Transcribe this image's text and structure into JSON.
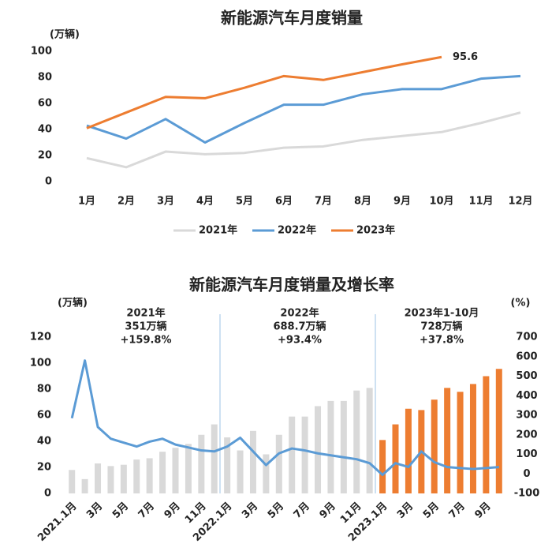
{
  "chart_data": [
    {
      "type": "line",
      "title": "新能源汽车月度销量",
      "y_label": "(万辆)",
      "categories": [
        "1月",
        "2月",
        "3月",
        "4月",
        "5月",
        "6月",
        "7月",
        "8月",
        "9月",
        "10月",
        "11月",
        "12月"
      ],
      "series": [
        {
          "name": "2021年",
          "color": "#d9d9d9",
          "values": [
            18,
            11,
            23,
            21,
            22,
            26,
            27,
            32,
            35,
            38,
            45,
            53
          ]
        },
        {
          "name": "2022年",
          "color": "#5b9bd5",
          "values": [
            43,
            33,
            48,
            30,
            45,
            59,
            59,
            67,
            71,
            71,
            79,
            81
          ]
        },
        {
          "name": "2023年",
          "color": "#ed7d31",
          "values": [
            41,
            53,
            65,
            64,
            72,
            81,
            78,
            84,
            90,
            95.6,
            null,
            null
          ]
        }
      ],
      "annotations": [
        {
          "text": "95.6"
        }
      ],
      "ylim": [
        0,
        100
      ],
      "yticks": [
        0,
        20,
        40,
        60,
        80,
        100
      ],
      "legend": "bottom"
    },
    {
      "type": "bar",
      "title": "新能源汽车月度销量及增长率",
      "y_label": "(万辆)",
      "y2_label": "(%)",
      "categories": [
        "2021.1月",
        null,
        "3月",
        null,
        "5月",
        null,
        "7月",
        null,
        "9月",
        null,
        "11月",
        null,
        "2022.1月",
        null,
        "3月",
        null,
        "5月",
        null,
        "7月",
        null,
        "9月",
        null,
        "11月",
        null,
        "2023.1月",
        null,
        "3月",
        null,
        "5月",
        null,
        "7月",
        null,
        "9月",
        null
      ],
      "series": [
        {
          "type": "bar",
          "color": "#d9d9d9",
          "values": [
            18,
            11,
            23,
            21,
            22,
            26,
            27,
            32,
            35,
            38,
            45,
            53,
            43,
            33,
            48,
            30,
            45,
            59,
            59,
            67,
            71,
            71,
            79,
            81,
            null,
            null,
            null,
            null,
            null,
            null,
            null,
            null,
            null,
            null
          ]
        },
        {
          "type": "bar",
          "color": "#ed7d31",
          "values": [
            null,
            null,
            null,
            null,
            null,
            null,
            null,
            null,
            null,
            null,
            null,
            null,
            null,
            null,
            null,
            null,
            null,
            null,
            null,
            null,
            null,
            null,
            null,
            null,
            41,
            53,
            65,
            64,
            72,
            81,
            78,
            84,
            90,
            95.6
          ]
        },
        {
          "type": "line",
          "axis": "y2",
          "color": "#5b9bd5",
          "values": [
            285,
            580,
            240,
            180,
            160,
            140,
            165,
            180,
            150,
            135,
            120,
            115,
            140,
            185,
            115,
            45,
            105,
            130,
            120,
            105,
            95,
            85,
            75,
            55,
            -5,
            55,
            35,
            115,
            60,
            35,
            30,
            25,
            30,
            35
          ]
        }
      ],
      "annotations": [
        {
          "lines": [
            "2021年",
            "351万辆",
            "+159.8%"
          ]
        },
        {
          "lines": [
            "2022年",
            "688.7万辆",
            "+93.4%"
          ]
        },
        {
          "lines": [
            "2023年1-10月",
            "728万辆",
            "+37.8%"
          ]
        }
      ],
      "ylim": [
        0,
        120
      ],
      "yticks": [
        0,
        20,
        40,
        60,
        80,
        100,
        120
      ],
      "y2lim": [
        -100,
        700
      ],
      "y2ticks": [
        -100,
        0,
        100,
        200,
        300,
        400,
        500,
        600,
        700
      ]
    }
  ]
}
